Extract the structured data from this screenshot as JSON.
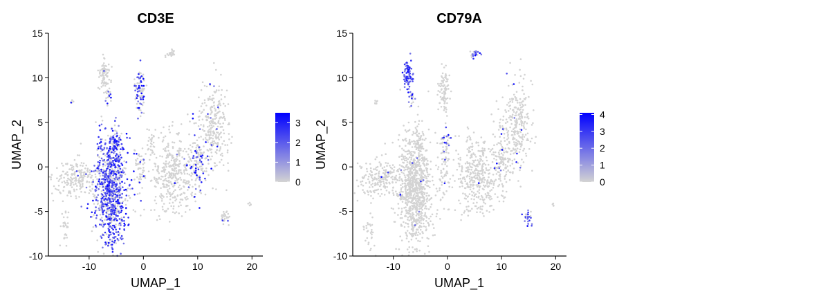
{
  "figure": {
    "panel_count": 2,
    "cell_color_zero": "#d3d3d3",
    "cell_color_high": "#0000ff"
  },
  "chart_data": [
    {
      "type": "scatter",
      "title": "CD3E",
      "xlabel": "UMAP_1",
      "ylabel": "UMAP_2",
      "xlim": [
        -17.5,
        22
      ],
      "ylim": [
        -10,
        15
      ],
      "x_ticks": [
        -10,
        0,
        10,
        20
      ],
      "x_tick_labels": [
        "-10",
        "0",
        "10",
        "20"
      ],
      "y_ticks": [
        -10,
        -5,
        0,
        5,
        10,
        15
      ],
      "y_tick_labels": [
        "-10",
        "-5",
        "0",
        "5",
        "10",
        "15"
      ],
      "grid": false,
      "colorbar": {
        "min": 0,
        "max": 3.5,
        "ticks": [
          0,
          1,
          2,
          3
        ],
        "tick_labels": [
          "0",
          "1",
          "2",
          "3"
        ],
        "low": "#d3d3d3",
        "high": "#0000ff"
      },
      "clusters": [
        {
          "cx": -6.0,
          "cy": -2.5,
          "sx": 1.5,
          "sy": 3.2,
          "n": 900,
          "expr": 0.65
        },
        {
          "cx": -5.2,
          "cy": 2.8,
          "sx": 0.6,
          "sy": 0.7,
          "n": 60,
          "expr": 0.55
        },
        {
          "cx": -12.5,
          "cy": -1.2,
          "sx": 2.0,
          "sy": 1.0,
          "n": 200,
          "expr": 0.02
        },
        {
          "cx": -14.3,
          "cy": -6.8,
          "sx": 0.5,
          "sy": 1.1,
          "n": 30,
          "expr": 0.0
        },
        {
          "cx": -7.2,
          "cy": 10.3,
          "sx": 0.5,
          "sy": 0.9,
          "n": 80,
          "expr": 0.02
        },
        {
          "cx": -13.2,
          "cy": 7.3,
          "sx": 0.2,
          "sy": 0.15,
          "n": 6,
          "expr": 0.3
        },
        {
          "cx": -6.5,
          "cy": 8.0,
          "sx": 0.3,
          "sy": 0.4,
          "n": 15,
          "expr": 0.3
        },
        {
          "cx": -0.6,
          "cy": 8.5,
          "sx": 0.5,
          "sy": 1.2,
          "n": 90,
          "expr": 0.5
        },
        {
          "cx": 5.0,
          "cy": 12.7,
          "sx": 0.5,
          "sy": 0.2,
          "n": 20,
          "expr": 0.0
        },
        {
          "cx": 1.5,
          "cy": 2.5,
          "sx": 0.4,
          "sy": 0.6,
          "n": 30,
          "expr": 0.0
        },
        {
          "cx": 5.5,
          "cy": -0.8,
          "sx": 2.0,
          "sy": 2.3,
          "n": 380,
          "expr": 0.01
        },
        {
          "cx": 10.0,
          "cy": 0.5,
          "sx": 0.8,
          "sy": 1.9,
          "n": 120,
          "expr": 0.35
        },
        {
          "cx": 13.0,
          "cy": 4.5,
          "sx": 1.3,
          "sy": 2.5,
          "n": 260,
          "expr": 0.03
        },
        {
          "cx": -0.8,
          "cy": -0.5,
          "sx": 0.6,
          "sy": 1.5,
          "n": 60,
          "expr": 0.2
        },
        {
          "cx": 15.0,
          "cy": -5.6,
          "sx": 0.4,
          "sy": 0.4,
          "n": 25,
          "expr": 0.02
        },
        {
          "cx": 19.5,
          "cy": -4.2,
          "sx": 0.2,
          "sy": 0.15,
          "n": 5,
          "expr": 0.0
        }
      ]
    },
    {
      "type": "scatter",
      "title": "CD79A",
      "xlabel": "UMAP_1",
      "ylabel": "UMAP_2",
      "xlim": [
        -17.5,
        22
      ],
      "ylim": [
        -10,
        15
      ],
      "x_ticks": [
        -10,
        0,
        10,
        20
      ],
      "x_tick_labels": [
        "-10",
        "0",
        "10",
        "20"
      ],
      "y_ticks": [
        -10,
        -5,
        0,
        5,
        10,
        15
      ],
      "y_tick_labels": [
        "-10",
        "-5",
        "0",
        "5",
        "10",
        "15"
      ],
      "grid": false,
      "colorbar": {
        "min": 0,
        "max": 4.1,
        "ticks": [
          0,
          1,
          2,
          3,
          4
        ],
        "tick_labels": [
          "0",
          "1",
          "2",
          "3",
          "4"
        ],
        "low": "#d3d3d3",
        "high": "#0000ff"
      },
      "clusters": [
        {
          "cx": -6.0,
          "cy": -2.5,
          "sx": 1.5,
          "sy": 3.2,
          "n": 900,
          "expr": 0.02
        },
        {
          "cx": -5.2,
          "cy": 2.8,
          "sx": 0.6,
          "sy": 0.7,
          "n": 60,
          "expr": 0.0
        },
        {
          "cx": -12.5,
          "cy": -1.2,
          "sx": 2.0,
          "sy": 1.0,
          "n": 200,
          "expr": 0.03
        },
        {
          "cx": -14.3,
          "cy": -6.8,
          "sx": 0.5,
          "sy": 1.1,
          "n": 30,
          "expr": 0.0
        },
        {
          "cx": -7.2,
          "cy": 10.3,
          "sx": 0.5,
          "sy": 0.9,
          "n": 80,
          "expr": 0.85
        },
        {
          "cx": -13.2,
          "cy": 7.3,
          "sx": 0.2,
          "sy": 0.15,
          "n": 6,
          "expr": 0.0
        },
        {
          "cx": -6.5,
          "cy": 8.0,
          "sx": 0.3,
          "sy": 0.4,
          "n": 15,
          "expr": 0.5
        },
        {
          "cx": -0.6,
          "cy": 8.5,
          "sx": 0.5,
          "sy": 1.2,
          "n": 90,
          "expr": 0.02
        },
        {
          "cx": 5.0,
          "cy": 12.7,
          "sx": 0.5,
          "sy": 0.2,
          "n": 20,
          "expr": 0.5
        },
        {
          "cx": -0.3,
          "cy": 3.0,
          "sx": 0.4,
          "sy": 0.5,
          "n": 30,
          "expr": 0.6
        },
        {
          "cx": 5.5,
          "cy": -0.8,
          "sx": 2.0,
          "sy": 2.3,
          "n": 380,
          "expr": 0.01
        },
        {
          "cx": 10.0,
          "cy": 0.5,
          "sx": 0.8,
          "sy": 1.9,
          "n": 120,
          "expr": 0.03
        },
        {
          "cx": 13.0,
          "cy": 4.5,
          "sx": 1.3,
          "sy": 2.5,
          "n": 260,
          "expr": 0.03
        },
        {
          "cx": -0.8,
          "cy": -0.5,
          "sx": 0.6,
          "sy": 1.5,
          "n": 60,
          "expr": 0.02
        },
        {
          "cx": 15.0,
          "cy": -5.6,
          "sx": 0.4,
          "sy": 0.4,
          "n": 25,
          "expr": 0.7
        },
        {
          "cx": 19.5,
          "cy": -4.2,
          "sx": 0.2,
          "sy": 0.15,
          "n": 5,
          "expr": 0.5
        }
      ]
    }
  ]
}
